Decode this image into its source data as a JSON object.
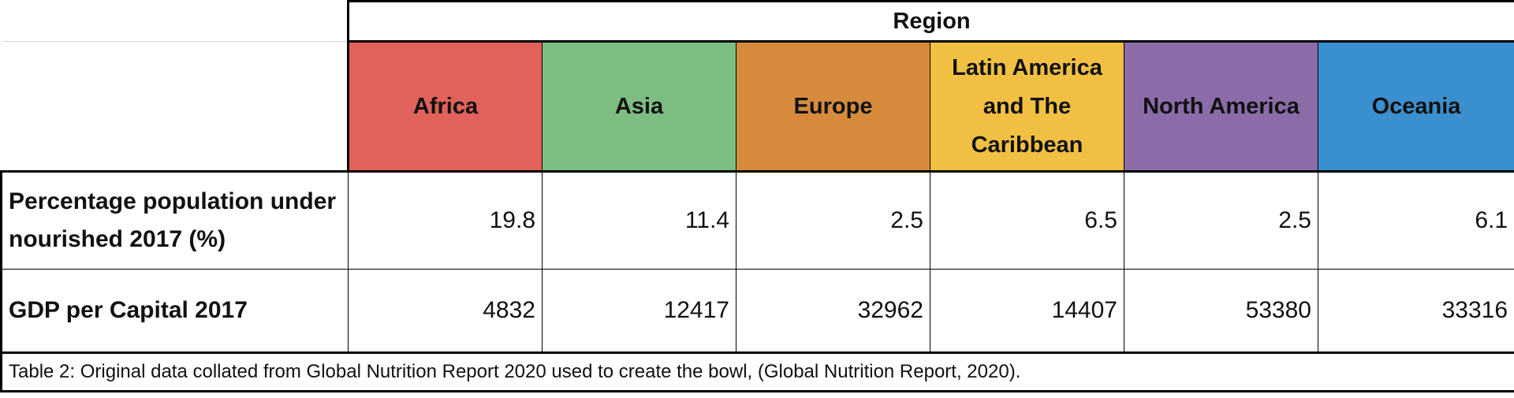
{
  "table": {
    "group_header": "Region",
    "regions": [
      {
        "name": "Africa",
        "color": "#e0625a"
      },
      {
        "name": "Asia",
        "color": "#7dbd82"
      },
      {
        "name": "Europe",
        "color": "#d68b3c"
      },
      {
        "name": "Latin America and The Caribbean",
        "color": "#f1c043"
      },
      {
        "name": "North America",
        "color": "#8b6ca9"
      },
      {
        "name": "Oceania",
        "color": "#3a8fce"
      }
    ],
    "rows": [
      {
        "label": "Percentage population under nourished 2017 (%)",
        "values": [
          "19.8",
          "11.4",
          "2.5",
          "6.5",
          "2.5",
          "6.1"
        ]
      },
      {
        "label": "GDP per Capital 2017",
        "values": [
          "4832",
          "12417",
          "32962",
          "14407",
          "53380",
          "33316"
        ]
      }
    ],
    "caption": "Table 2: Original data collated from Global Nutrition Report 2020 used to create the bowl, (Global Nutrition Report, 2020)."
  }
}
